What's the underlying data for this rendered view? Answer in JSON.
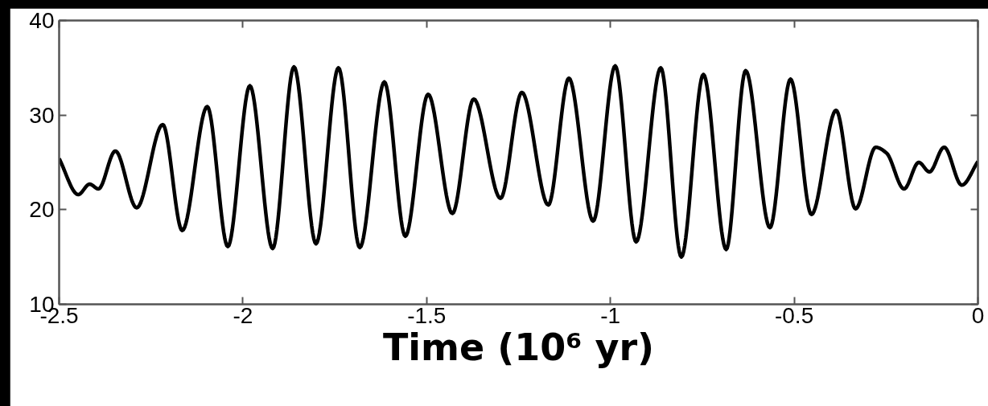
{
  "chart_data": {
    "type": "line",
    "xlabel": "Time (10⁶ yr)",
    "xlim": [
      -2.5,
      0
    ],
    "ylim": [
      10,
      40
    ],
    "xticks": [
      -2.5,
      -2,
      -1.5,
      -1,
      -0.5,
      0
    ],
    "yticks": [
      10,
      20,
      30,
      40
    ],
    "grid": false,
    "marker": "none",
    "line_style": "solid",
    "series": [
      {
        "color": "#000000",
        "x": [
          -2.5,
          -2.448,
          -2.417,
          -2.393,
          -2.347,
          -2.289,
          -2.218,
          -2.165,
          -2.097,
          -2.041,
          -1.981,
          -1.919,
          -1.861,
          -1.801,
          -1.74,
          -1.682,
          -1.615,
          -1.558,
          -1.496,
          -1.43,
          -1.372,
          -1.299,
          -1.241,
          -1.169,
          -1.113,
          -1.047,
          -0.987,
          -0.93,
          -0.863,
          -0.807,
          -0.747,
          -0.685,
          -0.632,
          -0.566,
          -0.51,
          -0.453,
          -0.386,
          -0.333,
          -0.278,
          -0.249,
          -0.201,
          -0.161,
          -0.132,
          -0.092,
          -0.044,
          0
        ],
        "values": [
          25.4,
          21.6,
          22.7,
          22.2,
          26.2,
          20.2,
          29.0,
          17.8,
          30.9,
          16.1,
          33.1,
          15.9,
          35.1,
          16.4,
          35.0,
          16.0,
          33.5,
          17.2,
          32.2,
          19.6,
          31.7,
          21.2,
          32.4,
          20.5,
          33.9,
          18.8,
          35.2,
          16.6,
          35.0,
          15.0,
          34.3,
          15.8,
          34.7,
          18.1,
          33.8,
          19.5,
          30.5,
          20.1,
          26.6,
          26.0,
          22.2,
          25.0,
          24.0,
          26.6,
          22.6,
          25.1
        ]
      }
    ]
  }
}
